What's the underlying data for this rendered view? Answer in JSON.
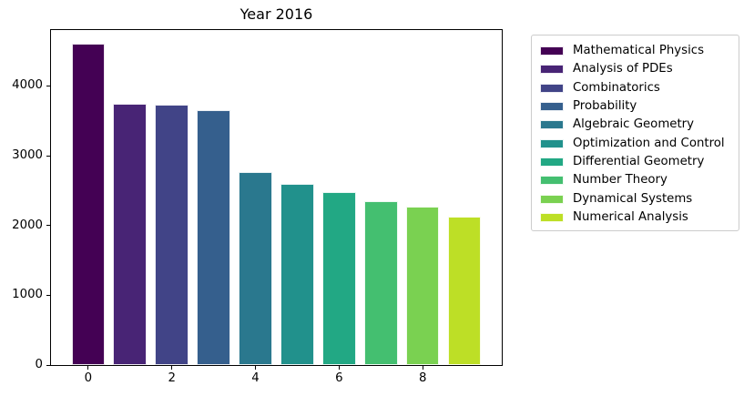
{
  "chart_data": {
    "type": "bar",
    "title": "Year 2016",
    "categories": [
      "Mathematical Physics",
      "Analysis of PDEs",
      "Combinatorics",
      "Probability",
      "Algebraic Geometry",
      "Optimization and Control",
      "Differential Geometry",
      "Number Theory",
      "Dynamical Systems",
      "Numerical Analysis"
    ],
    "x": [
      0,
      1,
      2,
      3,
      4,
      5,
      6,
      7,
      8,
      9
    ],
    "values": [
      4600,
      3740,
      3725,
      3650,
      2760,
      2600,
      2480,
      2350,
      2270,
      2130
    ],
    "bar_colors": [
      "#440154",
      "#482475",
      "#414487",
      "#355f8d",
      "#2a788e",
      "#21918c",
      "#22a884",
      "#44bf70",
      "#7ad151",
      "#bddf26"
    ],
    "bar_width": 0.8,
    "xlabel": "",
    "ylabel": "",
    "xlim": [
      -0.89,
      9.89
    ],
    "ylim": [
      0,
      4800
    ],
    "xticks": [
      0,
      2,
      4,
      6,
      8
    ],
    "yticks": [
      0,
      1000,
      2000,
      3000,
      4000
    ],
    "grid": false,
    "legend_position": "outside-right"
  },
  "style": {
    "background": "#ffffff",
    "axis_color": "#000000",
    "text_color": "#000000",
    "legend_border_color": "#cccccc"
  }
}
